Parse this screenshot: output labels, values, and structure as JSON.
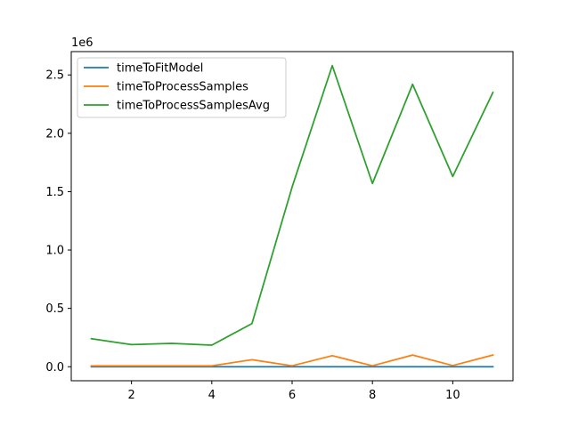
{
  "chart_data": {
    "type": "line",
    "title": "",
    "xlabel": "",
    "ylabel": "",
    "y_offset_text": "1e6",
    "x": [
      1,
      2,
      3,
      4,
      5,
      6,
      7,
      8,
      9,
      10,
      11
    ],
    "xlim": [
      0.5,
      11.5
    ],
    "ylim": [
      -0.12,
      2.7
    ],
    "x_ticks": [
      2,
      4,
      6,
      8,
      10
    ],
    "x_tick_labels": [
      "2",
      "4",
      "6",
      "8",
      "10"
    ],
    "y_ticks": [
      0,
      0.5,
      1.0,
      1.5,
      2.0,
      2.5
    ],
    "y_tick_labels": [
      "0.0",
      "0.5",
      "1.0",
      "1.5",
      "2.0",
      "2.5"
    ],
    "grid": false,
    "legend_position": "top-left",
    "y_unit_scale": 1000000,
    "series": [
      {
        "name": "timeToFitModel",
        "color": "#1f77b4",
        "values": [
          0.0,
          0.0,
          0.0,
          0.0,
          0.0,
          0.0,
          0.0,
          0.0,
          0.0,
          0.0,
          0.0
        ]
      },
      {
        "name": "timeToProcessSamples",
        "color": "#ff7f0e",
        "values": [
          0.008,
          0.008,
          0.008,
          0.008,
          0.06,
          0.008,
          0.095,
          0.008,
          0.1,
          0.01,
          0.1
        ]
      },
      {
        "name": "timeToProcessSamplesAvg",
        "color": "#2ca02c",
        "values": [
          0.24,
          0.19,
          0.2,
          0.185,
          0.37,
          1.54,
          2.58,
          1.57,
          2.42,
          1.63,
          2.35
        ]
      }
    ]
  }
}
